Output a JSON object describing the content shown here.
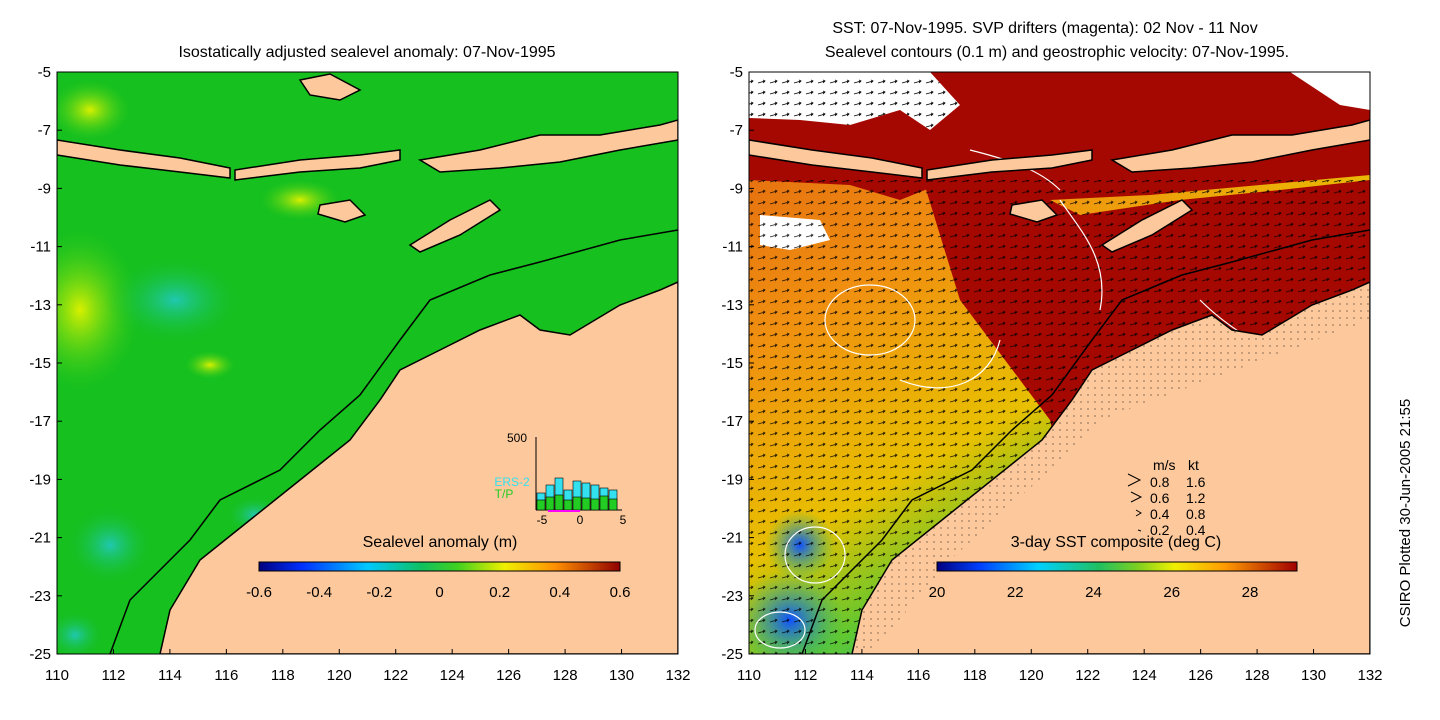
{
  "left_panel": {
    "title": "Isostatically adjusted sealevel anomaly: 07-Nov-1995",
    "colorbar_label": "Sealevel anomaly (m)",
    "colorbar_ticks": [
      "-0.6",
      "-0.4",
      "-0.2",
      "0",
      "0.2",
      "0.4",
      "0.6"
    ],
    "inset": {
      "ymax_label": "500",
      "x_ticks": [
        "-5",
        "0",
        "5"
      ],
      "legend": [
        {
          "label": "ERS-2",
          "color": "#33e0f0"
        },
        {
          "label": "T/P",
          "color": "#22cc22"
        }
      ]
    }
  },
  "right_panel": {
    "title_line1": "SST: 07-Nov-1995. SVP drifters (magenta): 02 Nov - 11 Nov",
    "title_line2": "Sealevel contours (0.1 m) and geostrophic velocity: 07-Nov-1995.",
    "colorbar_label": "3-day SST composite (deg C)",
    "colorbar_ticks": [
      "20",
      "22",
      "24",
      "26",
      "28"
    ],
    "speed_legend": {
      "header_ms": "m/s",
      "header_kt": "kt",
      "rows": [
        {
          "ms": "0.8",
          "kt": "1.6"
        },
        {
          "ms": "0.6",
          "kt": "1.2"
        },
        {
          "ms": "0.4",
          "kt": "0.8"
        },
        {
          "ms": "0.2",
          "kt": "0.4"
        }
      ]
    }
  },
  "axes": {
    "y_ticks": [
      "-5",
      "-7",
      "-9",
      "-11",
      "-13",
      "-15",
      "-17",
      "-19",
      "-21",
      "-23",
      "-25"
    ],
    "x_ticks": [
      "110",
      "112",
      "114",
      "116",
      "118",
      "120",
      "122",
      "124",
      "126",
      "128",
      "130",
      "132"
    ]
  },
  "credit": "CSIRO Plotted 30-Jun-2005 21:55",
  "colors": {
    "land": "#fdc99c",
    "sla_ocean": "#16c01e",
    "sst_warm": "#a50800",
    "sst_cool": "#f08c10"
  }
}
